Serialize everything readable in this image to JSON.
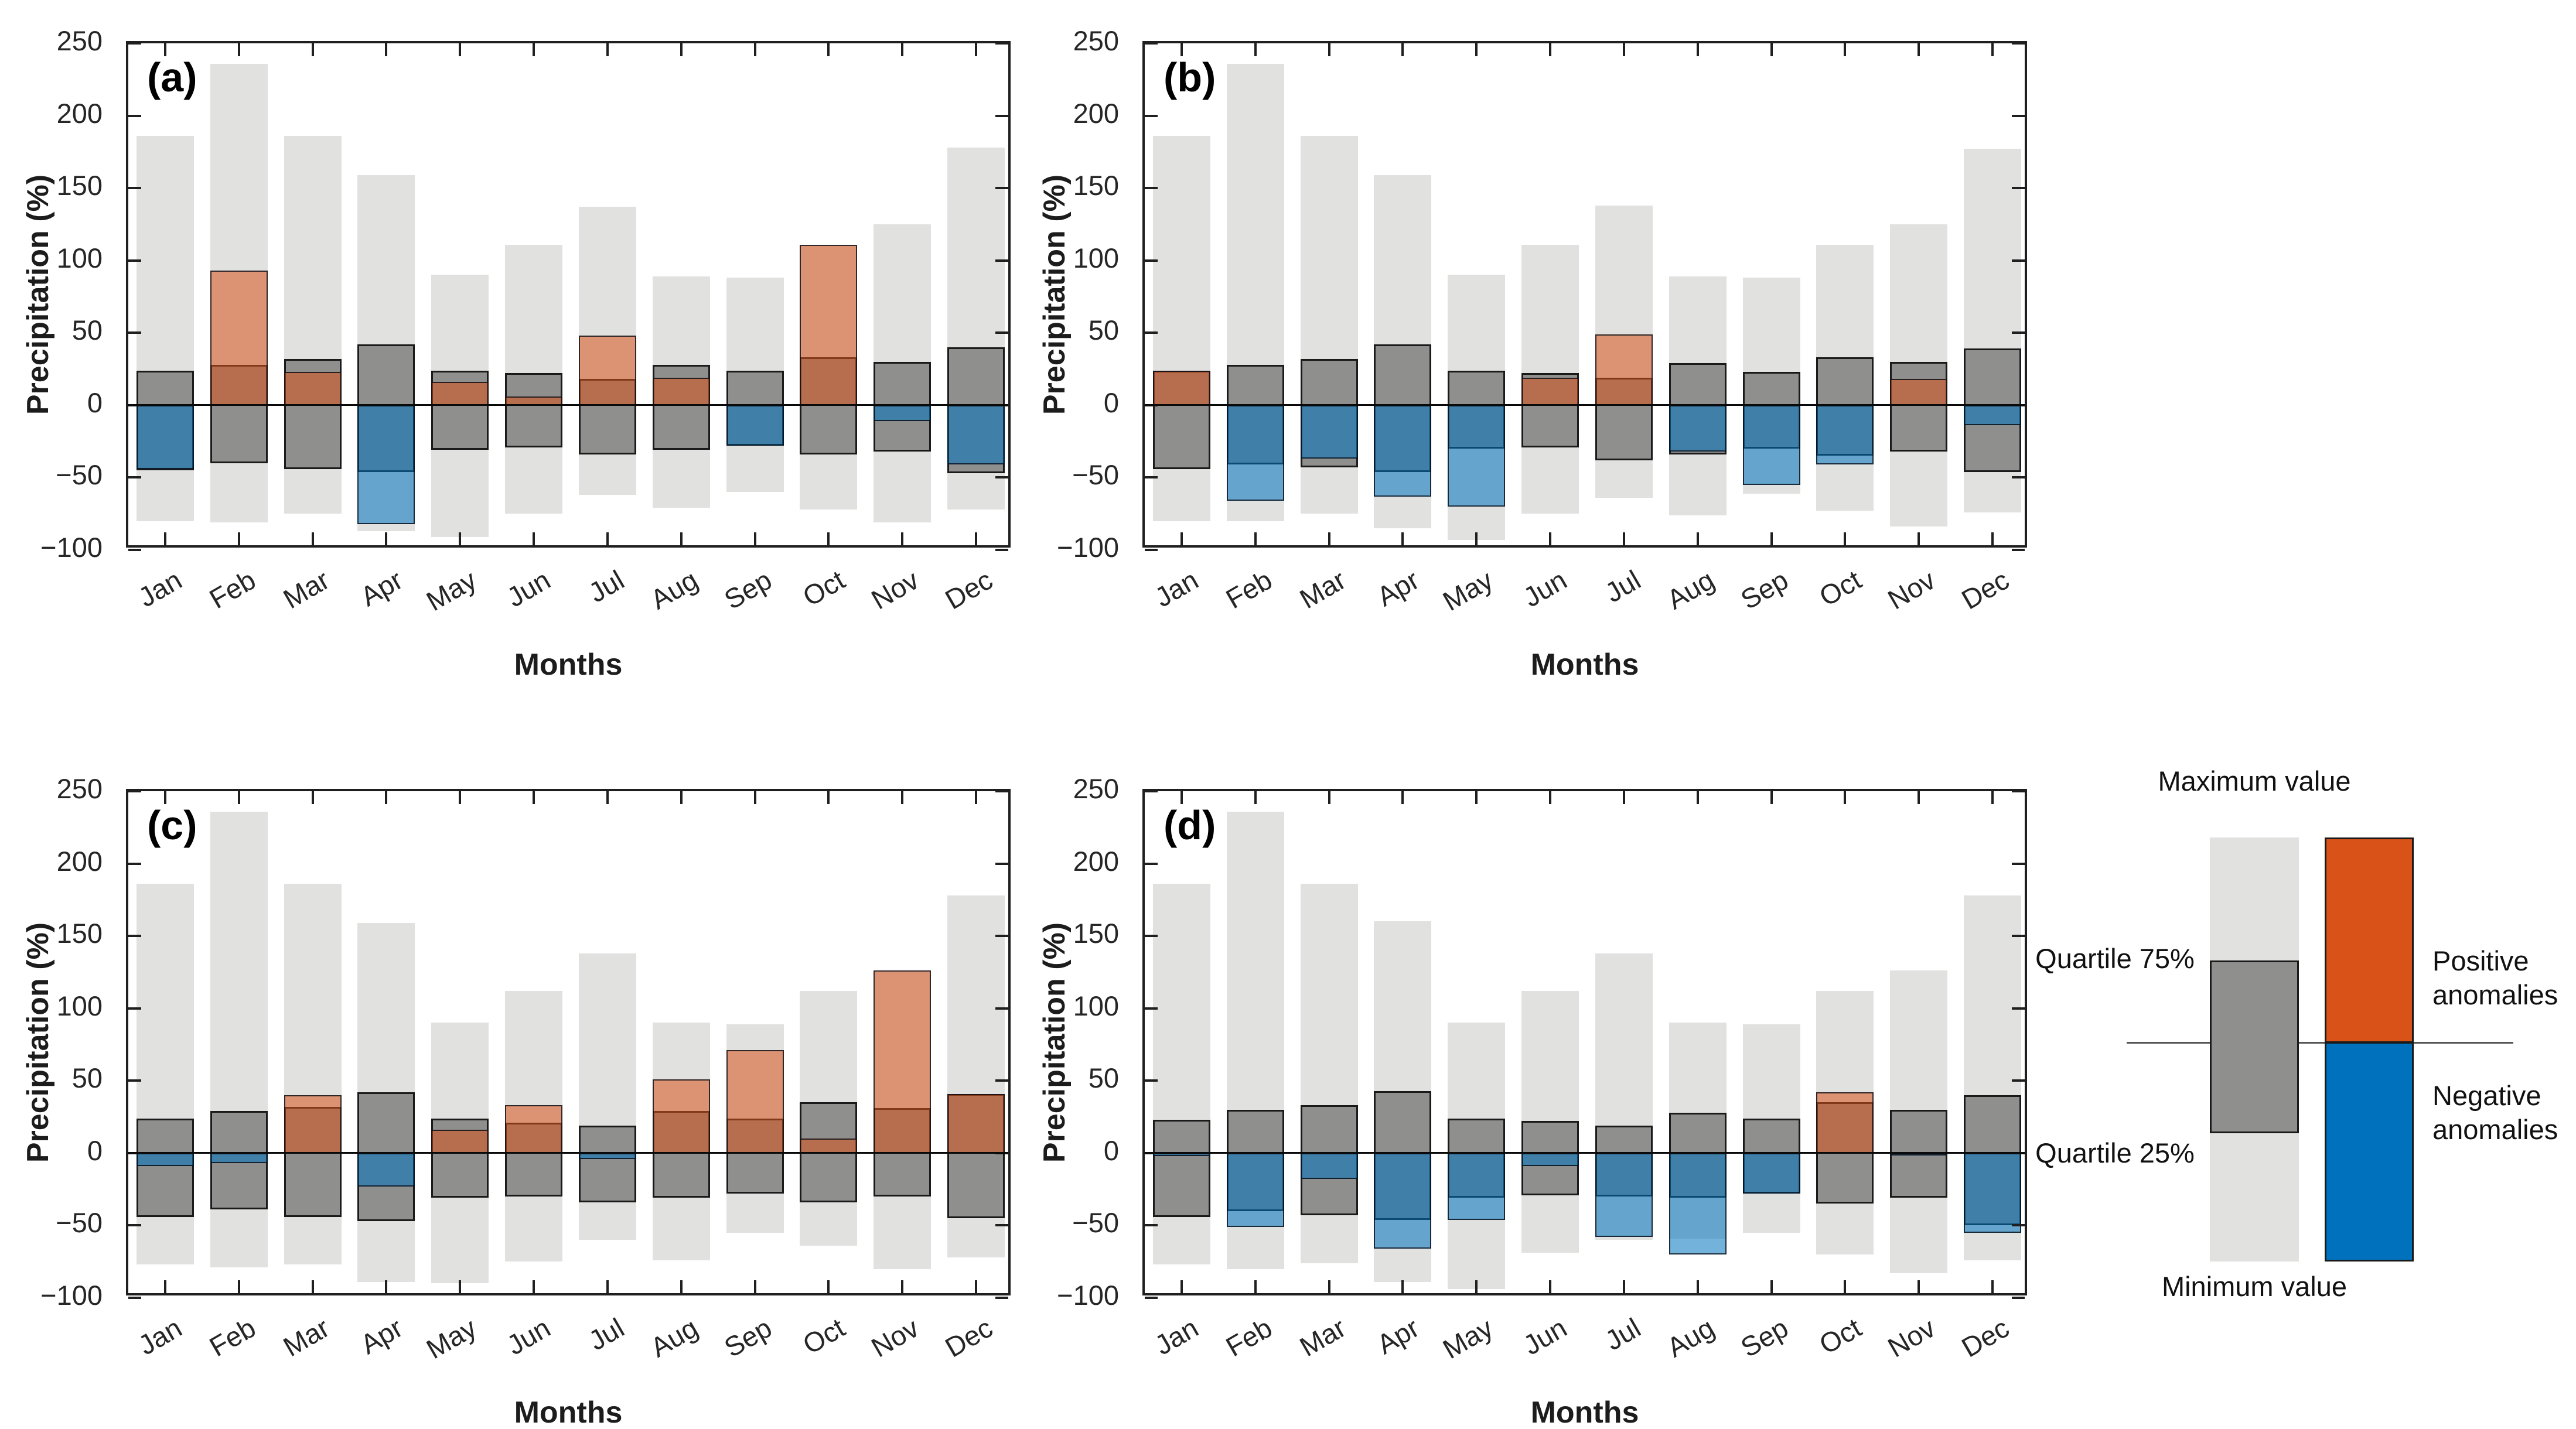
{
  "figure": {
    "y_axis_label": "Precipitation (%)",
    "x_axis_label": "Months",
    "ylim": [
      -100,
      250
    ],
    "yticks": [
      250,
      200,
      150,
      100,
      50,
      0,
      -50,
      -100
    ]
  },
  "colors": {
    "positive_anomaly": "#d95319",
    "negative_anomaly": "#0072bd",
    "anomaly_overlay_alpha": 0.55,
    "range_fill": "#e1e1e0",
    "quartile_fill": "#8f8f8e",
    "axis_color": "#1f1f1f",
    "zero_line_color": "#0a0a0a"
  },
  "chart_data": [
    {
      "type": "bar",
      "panel_label": "(a)",
      "title": "",
      "xlabel": "Months",
      "ylabel": "Precipitation (%)",
      "ylim": [
        -100,
        250
      ],
      "months": [
        "Jan",
        "Feb",
        "Mar",
        "Apr",
        "May",
        "Jun",
        "Jul",
        "Aug",
        "Sep",
        "Oct",
        "Nov",
        "Dec"
      ],
      "max": [
        186,
        236,
        186,
        159,
        90,
        111,
        137,
        89,
        88,
        111,
        125,
        178
      ],
      "quartile75": [
        24,
        28,
        32,
        42,
        24,
        22,
        18,
        28,
        24,
        33,
        30,
        40
      ],
      "quartile25": [
        -45,
        -40,
        -44,
        -46,
        -31,
        -29,
        -34,
        -31,
        -28,
        -34,
        -32,
        -47
      ],
      "min": [
        -80,
        -81,
        -75,
        -87,
        -91,
        -75,
        -62,
        -71,
        -60,
        -72,
        -81,
        -72
      ],
      "anomaly": [
        -44,
        93,
        23,
        -82,
        16,
        6,
        48,
        19,
        -28,
        111,
        -11,
        -41
      ]
    },
    {
      "type": "bar",
      "panel_label": "(b)",
      "title": "",
      "xlabel": "Months",
      "ylabel": "Precipitation (%)",
      "ylim": [
        -100,
        250
      ],
      "months": [
        "Jan",
        "Feb",
        "Mar",
        "Apr",
        "May",
        "Jun",
        "Jul",
        "Aug",
        "Sep",
        "Oct",
        "Nov",
        "Dec"
      ],
      "max": [
        186,
        236,
        186,
        159,
        90,
        111,
        138,
        89,
        88,
        111,
        125,
        177
      ],
      "quartile75": [
        24,
        28,
        32,
        42,
        24,
        22,
        19,
        29,
        23,
        33,
        30,
        39
      ],
      "quartile25": [
        -44,
        -41,
        -43,
        -46,
        -30,
        -29,
        -38,
        -34,
        -30,
        -35,
        -32,
        -46
      ],
      "min": [
        -80,
        -80,
        -75,
        -85,
        -93,
        -75,
        -64,
        -76,
        -61,
        -73,
        -84,
        -74
      ],
      "anomaly": [
        24,
        -66,
        -37,
        -63,
        -70,
        19,
        49,
        -32,
        -55,
        -41,
        18,
        -14
      ]
    },
    {
      "type": "bar",
      "panel_label": "(c)",
      "title": "",
      "xlabel": "Months",
      "ylabel": "Precipitation (%)",
      "ylim": [
        -100,
        250
      ],
      "months": [
        "Jan",
        "Feb",
        "Mar",
        "Apr",
        "May",
        "Jun",
        "Jul",
        "Aug",
        "Sep",
        "Oct",
        "Nov",
        "Dec"
      ],
      "max": [
        186,
        236,
        186,
        159,
        90,
        112,
        138,
        90,
        89,
        112,
        125,
        178
      ],
      "quartile75": [
        24,
        29,
        32,
        42,
        24,
        21,
        19,
        29,
        24,
        35,
        31,
        41
      ],
      "quartile25": [
        -44,
        -39,
        -44,
        -47,
        -31,
        -30,
        -34,
        -31,
        -28,
        -34,
        -30,
        -45
      ],
      "min": [
        -77,
        -79,
        -77,
        -89,
        -90,
        -75,
        -60,
        -74,
        -55,
        -64,
        -80,
        -72
      ],
      "anomaly": [
        -9,
        -7,
        40,
        -23,
        16,
        33,
        -4,
        51,
        71,
        10,
        126,
        41
      ]
    },
    {
      "type": "bar",
      "panel_label": "(d)",
      "title": "",
      "xlabel": "Months",
      "ylabel": "Precipitation (%)",
      "ylim": [
        -100,
        250
      ],
      "months": [
        "Jan",
        "Feb",
        "Mar",
        "Apr",
        "May",
        "Jun",
        "Jul",
        "Aug",
        "Sep",
        "Oct",
        "Nov",
        "Dec"
      ],
      "max": [
        186,
        236,
        186,
        160,
        90,
        112,
        138,
        90,
        89,
        112,
        126,
        178
      ],
      "quartile75": [
        23,
        30,
        33,
        43,
        24,
        22,
        19,
        28,
        24,
        35,
        30,
        40
      ],
      "quartile25": [
        -44,
        -40,
        -43,
        -46,
        -31,
        -29,
        -30,
        -31,
        -28,
        -35,
        -31,
        -50
      ],
      "min": [
        -77,
        -80,
        -76,
        -89,
        -94,
        -69,
        -60,
        -59,
        -55,
        -70,
        -83,
        -74
      ],
      "anomaly": [
        -2,
        -51,
        -18,
        -66,
        -46,
        -9,
        -58,
        -70,
        -28,
        42,
        -1,
        -55
      ]
    }
  ],
  "legend": {
    "maximum_label": "Maximum value",
    "minimum_label": "Minimum value",
    "quartile75_label": "Quartile 75%",
    "quartile25_label": "Quartile 25%",
    "positive_label": "Positive anomalies",
    "negative_label": "Negative anomalies"
  }
}
